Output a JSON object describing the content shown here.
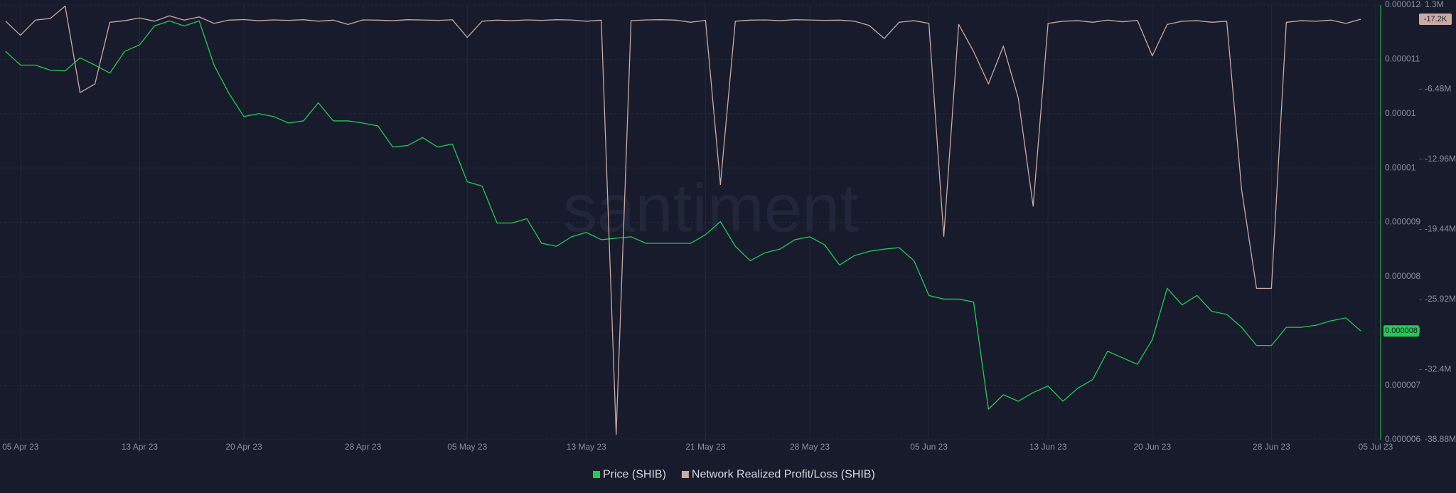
{
  "chart_data": {
    "type": "line",
    "watermark": "santiment",
    "x": [
      "2023-04-04",
      "2023-04-05",
      "2023-04-06",
      "2023-04-07",
      "2023-04-08",
      "2023-04-09",
      "2023-04-10",
      "2023-04-11",
      "2023-04-12",
      "2023-04-13",
      "2023-04-14",
      "2023-04-15",
      "2023-04-16",
      "2023-04-17",
      "2023-04-18",
      "2023-04-19",
      "2023-04-20",
      "2023-04-21",
      "2023-04-22",
      "2023-04-23",
      "2023-04-24",
      "2023-04-25",
      "2023-04-26",
      "2023-04-27",
      "2023-04-28",
      "2023-04-29",
      "2023-04-30",
      "2023-05-01",
      "2023-05-02",
      "2023-05-03",
      "2023-05-04",
      "2023-05-05",
      "2023-05-06",
      "2023-05-07",
      "2023-05-08",
      "2023-05-09",
      "2023-05-10",
      "2023-05-11",
      "2023-05-12",
      "2023-05-13",
      "2023-05-14",
      "2023-05-15",
      "2023-05-16",
      "2023-05-17",
      "2023-05-18",
      "2023-05-19",
      "2023-05-20",
      "2023-05-21",
      "2023-05-22",
      "2023-05-23",
      "2023-05-24",
      "2023-05-25",
      "2023-05-26",
      "2023-05-27",
      "2023-05-28",
      "2023-05-29",
      "2023-05-30",
      "2023-05-31",
      "2023-06-01",
      "2023-06-02",
      "2023-06-03",
      "2023-06-04",
      "2023-06-05",
      "2023-06-06",
      "2023-06-07",
      "2023-06-08",
      "2023-06-09",
      "2023-06-10",
      "2023-06-11",
      "2023-06-12",
      "2023-06-13",
      "2023-06-14",
      "2023-06-15",
      "2023-06-16",
      "2023-06-17",
      "2023-06-18",
      "2023-06-19",
      "2023-06-20",
      "2023-06-21",
      "2023-06-22",
      "2023-06-23",
      "2023-06-24",
      "2023-06-25",
      "2023-06-26",
      "2023-06-27",
      "2023-06-28",
      "2023-06-29",
      "2023-06-30",
      "2023-07-01",
      "2023-07-02",
      "2023-07-03",
      "2023-07-04"
    ],
    "xlim": [
      "2023-04-03T15:00Z",
      "2023-07-05T08:00Z"
    ],
    "xticks": [
      {
        "value": "2023-04-05",
        "label": "05 Apr 23"
      },
      {
        "value": "2023-04-13",
        "label": "13 Apr 23"
      },
      {
        "value": "2023-04-20",
        "label": "20 Apr 23"
      },
      {
        "value": "2023-04-28",
        "label": "28 Apr 23"
      },
      {
        "value": "2023-05-05",
        "label": "05 May 23"
      },
      {
        "value": "2023-05-13",
        "label": "13 May 23"
      },
      {
        "value": "2023-05-21",
        "label": "21 May 23"
      },
      {
        "value": "2023-05-28",
        "label": "28 May 23"
      },
      {
        "value": "2023-06-05",
        "label": "05 Jun 23"
      },
      {
        "value": "2023-06-13",
        "label": "13 Jun 23"
      },
      {
        "value": "2023-06-20",
        "label": "20 Jun 23"
      },
      {
        "value": "2023-06-28",
        "label": "28 Jun 23"
      },
      {
        "value": "2023-07-05",
        "label": "05 Jul 23"
      }
    ],
    "ylim": [
      6e-06,
      1.2e-05
    ],
    "yticks": [
      1.2e-05,
      {
        "value": 1.125e-05,
        "label": "0.000011"
      },
      {
        "value": 1.05e-05,
        "label": "0.00001"
      },
      {
        "value": 9.75e-06,
        "label": "0.00001"
      },
      9e-06,
      {
        "value": 8.25e-06,
        "label": "0.000008"
      },
      {
        "value": 7.5e-06,
        "label": "0.000008"
      },
      {
        "value": 6.75e-06,
        "label": "0.000007"
      },
      6e-06
    ],
    "y2lim": [
      -38880000,
      1300000
    ],
    "y2ticks": [
      {
        "value": 1300000,
        "label": "1.3M"
      },
      {
        "value": -6480000,
        "label": "-6.48M"
      },
      {
        "value": -12960000,
        "label": "-12.96M"
      },
      {
        "value": -19440000,
        "label": "-19.44M"
      },
      {
        "value": -25920000,
        "label": "-25.92M"
      },
      {
        "value": -32400000,
        "label": "-32.4M"
      },
      {
        "value": -38880000,
        "label": "-38.88M"
      }
    ],
    "grid": true,
    "legend": "bottom",
    "series": [
      {
        "name": "Price (SHIB)",
        "color": "#26c953",
        "values": [
          1.136e-05,
          1.117e-05,
          1.117e-05,
          1.11e-05,
          1.109e-05,
          1.127e-05,
          1.117e-05,
          1.106e-05,
          1.136e-05,
          1.145e-05,
          1.171e-05,
          1.178e-05,
          1.171e-05,
          1.178e-05,
          1.117e-05,
          1.078e-05,
          1.046e-05,
          1.05e-05,
          1.046e-05,
          1.037e-05,
          1.04e-05,
          1.065e-05,
          1.04e-05,
          1.04e-05,
          1.037e-05,
          1.033e-05,
          1.004e-05,
          1.006e-05,
          1.017e-05,
          1.004e-05,
          1.008e-05,
          9.56e-06,
          9.5e-06,
          8.99e-06,
          8.99e-06,
          9.05e-06,
          8.71e-06,
          8.67e-06,
          8.8e-06,
          8.86e-06,
          8.76e-06,
          8.78e-06,
          8.8e-06,
          8.71e-06,
          8.71e-06,
          8.71e-06,
          8.71e-06,
          8.83e-06,
          9.01e-06,
          8.67e-06,
          8.47e-06,
          8.58e-06,
          8.63e-06,
          8.76e-06,
          8.8e-06,
          8.69e-06,
          8.41e-06,
          8.54e-06,
          8.6e-06,
          8.63e-06,
          8.65e-06,
          8.47e-06,
          7.99e-06,
          7.94e-06,
          7.94e-06,
          7.9e-06,
          6.42e-06,
          6.62e-06,
          6.53e-06,
          6.65e-06,
          6.74e-06,
          6.53e-06,
          6.71e-06,
          6.83e-06,
          7.22e-06,
          7.13e-06,
          7.04e-06,
          7.38e-06,
          8.09e-06,
          7.86e-06,
          7.99e-06,
          7.77e-06,
          7.73e-06,
          7.55e-06,
          7.3e-06,
          7.3e-06,
          7.55e-06,
          7.55e-06,
          7.58e-06,
          7.64e-06,
          7.68e-06,
          7.5e-06
        ],
        "value_labels": [
          null,
          null,
          null,
          null,
          null,
          null,
          null,
          null,
          null,
          null,
          null,
          null,
          null,
          null,
          null,
          null,
          null,
          null,
          null,
          null,
          null,
          null,
          null,
          null,
          null,
          null,
          null,
          null,
          null,
          null,
          null,
          null,
          null,
          null,
          null,
          null,
          null,
          null,
          null,
          null,
          null,
          null,
          null,
          null,
          null,
          null,
          null,
          null,
          null,
          null,
          null,
          null,
          null,
          null,
          null,
          null,
          null,
          null,
          null,
          null,
          null,
          null,
          null,
          null,
          null,
          null,
          null,
          null,
          null,
          null,
          null,
          null,
          null,
          null,
          null,
          null,
          null,
          null,
          null,
          null,
          null,
          null,
          null,
          null,
          null,
          null,
          null,
          null,
          null,
          null,
          null,
          "0.000008"
        ]
      },
      {
        "name": "Network Realized Profit/Loss (SHIB)",
        "color": "#c9aaa4",
        "axis": "y2",
        "values": [
          -200000,
          -1500000,
          -100000,
          50000,
          1200000,
          -6800000,
          -6000000,
          -300000,
          -150000,
          100000,
          -200000,
          300000,
          -100000,
          200000,
          -400000,
          -100000,
          -50000,
          -150000,
          -80000,
          -120000,
          -60000,
          -200000,
          -100000,
          -500000,
          -80000,
          -100000,
          -150000,
          -60000,
          -90000,
          -120000,
          -70000,
          -1700000,
          -200000,
          -100000,
          -150000,
          -80000,
          -120000,
          -60000,
          -90000,
          -200000,
          -100000,
          -38400000,
          -150000,
          -80000,
          -60000,
          -100000,
          -300000,
          -120000,
          -15300000,
          -200000,
          -100000,
          -80000,
          -150000,
          -60000,
          -90000,
          -120000,
          -100000,
          -200000,
          -600000,
          -1800000,
          -300000,
          -150000,
          -400000,
          -20100000,
          -500000,
          -3000000,
          -6000000,
          -2500000,
          -7300000,
          -17300000,
          -400000,
          -200000,
          -150000,
          -300000,
          -100000,
          -250000,
          -120000,
          -3400000,
          -500000,
          -200000,
          -150000,
          -300000,
          -200000,
          -15800000,
          -24900000,
          -24900000,
          -300000,
          -150000,
          -200000,
          -100000,
          -400000,
          -17200
        ],
        "value_labels": [
          null,
          null,
          null,
          null,
          null,
          null,
          null,
          null,
          null,
          null,
          null,
          null,
          null,
          null,
          null,
          null,
          null,
          null,
          null,
          null,
          null,
          null,
          null,
          null,
          null,
          null,
          null,
          null,
          null,
          null,
          null,
          null,
          null,
          null,
          null,
          null,
          null,
          null,
          null,
          null,
          null,
          null,
          null,
          null,
          null,
          null,
          null,
          null,
          null,
          null,
          null,
          null,
          null,
          null,
          null,
          null,
          null,
          null,
          null,
          null,
          null,
          null,
          null,
          null,
          null,
          null,
          null,
          null,
          null,
          null,
          null,
          null,
          null,
          null,
          null,
          null,
          null,
          null,
          null,
          null,
          null,
          null,
          null,
          null,
          null,
          null,
          null,
          null,
          null,
          null,
          null,
          "-17.2K"
        ]
      }
    ]
  }
}
